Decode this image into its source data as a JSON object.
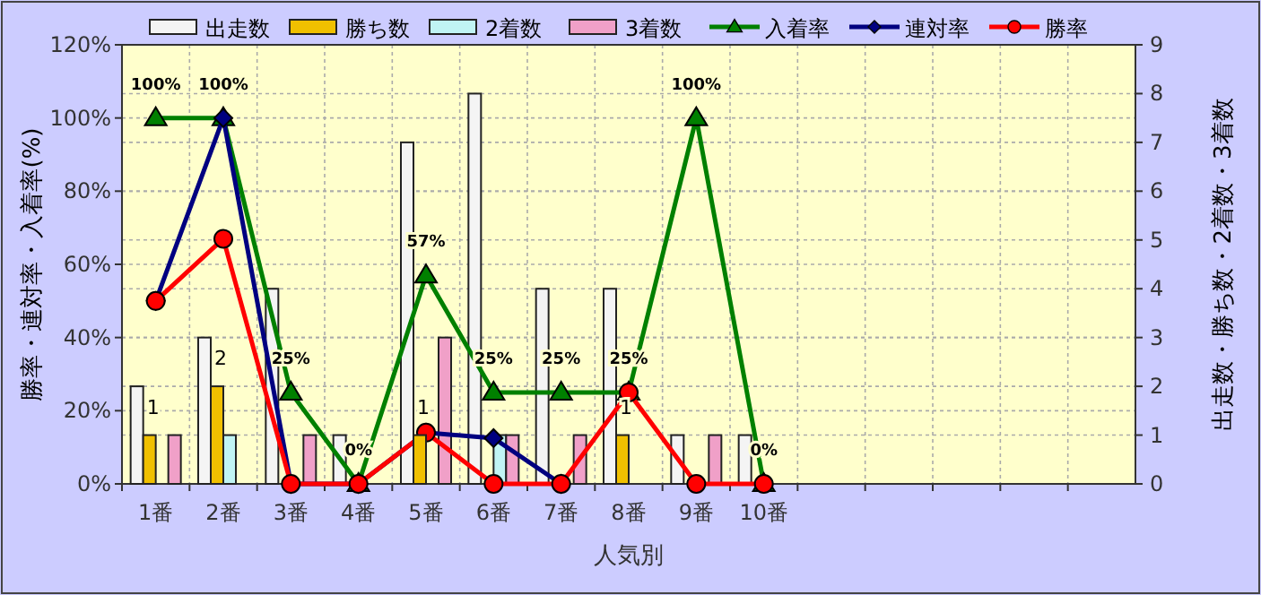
{
  "chart_data": {
    "type": "bar",
    "xlabel": "人気別",
    "ylabel": "勝率・連対率・入着率(%)",
    "y2label": "出走数・勝ち数・2着数・3着数",
    "categories": [
      "1番",
      "2番",
      "3番",
      "4番",
      "5番",
      "6番",
      "7番",
      "8番",
      "9番",
      "10番",
      null,
      null,
      null,
      null,
      null
    ],
    "series": [
      {
        "name": "出走数",
        "axis": "y2",
        "color": "#f4f4f4",
        "values": [
          2,
          3,
          4,
          1,
          7,
          8,
          4,
          4,
          1,
          1,
          null,
          null,
          null,
          null,
          null
        ]
      },
      {
        "name": "勝ち数",
        "axis": "y2",
        "color": "#f0c000",
        "values": [
          1,
          2,
          0,
          0,
          1,
          0,
          0,
          1,
          0,
          0,
          null,
          null,
          null,
          null,
          null
        ],
        "value_labels": [
          "1",
          "2",
          null,
          null,
          "1",
          null,
          null,
          "1",
          null,
          null,
          null,
          null,
          null,
          null,
          null
        ]
      },
      {
        "name": "2着数",
        "axis": "y2",
        "color": "#c0f4f4",
        "values": [
          0,
          1,
          0,
          0,
          0,
          1,
          0,
          0,
          0,
          0,
          null,
          null,
          null,
          null,
          null
        ]
      },
      {
        "name": "3着数",
        "axis": "y2",
        "color": "#f0a0c8",
        "values": [
          1,
          0,
          1,
          0,
          3,
          1,
          1,
          0,
          1,
          0,
          null,
          null,
          null,
          null,
          null
        ]
      },
      {
        "name": "入着率",
        "type": "line",
        "color": "#008000",
        "marker": "triangle",
        "values": [
          100,
          100,
          25,
          0,
          57,
          25,
          25,
          25,
          100,
          0,
          null,
          null,
          null,
          null,
          null
        ],
        "value_labels": [
          "100%",
          "100%",
          "25%",
          "0%",
          "57%",
          "25%",
          "25%",
          "25%",
          "100%",
          "0%",
          null,
          null,
          null,
          null,
          null
        ]
      },
      {
        "name": "連対率",
        "type": "line",
        "color": "#000080",
        "marker": "diamond",
        "values": [
          50,
          100,
          0,
          0,
          14,
          12.5,
          0,
          null,
          null,
          null,
          null,
          null,
          null,
          null,
          null
        ]
      },
      {
        "name": "勝率",
        "type": "line",
        "color": "#ff0000",
        "marker": "circle",
        "values": [
          50,
          67,
          0,
          0,
          14,
          0,
          0,
          25,
          0,
          0,
          null,
          null,
          null,
          null,
          null
        ]
      }
    ],
    "ylim": [
      0,
      120
    ],
    "yticks": [
      {
        "value": 0,
        "label": "0%"
      },
      {
        "value": 20,
        "label": "20%"
      },
      {
        "value": 40,
        "label": "40%"
      },
      {
        "value": 60,
        "label": "60%"
      },
      {
        "value": 80,
        "label": "80%"
      },
      {
        "value": 100,
        "label": "100%"
      },
      {
        "value": 120,
        "label": "120%"
      }
    ],
    "y2lim": [
      0,
      9
    ],
    "y2ticks": [
      0,
      1,
      2,
      3,
      4,
      5,
      6,
      7,
      8,
      9
    ],
    "grid": true,
    "legend": "top"
  }
}
